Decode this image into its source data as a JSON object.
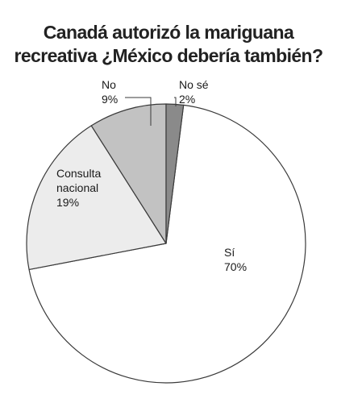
{
  "chart_data": {
    "type": "pie",
    "title": {
      "line1": "Canadá autorizó la mariguana",
      "line2": "recreativa ¿México debería también?"
    },
    "slices": [
      {
        "key": "si",
        "label_lines": [
          "Sí",
          "70%"
        ],
        "value": 70,
        "color": "#ffffff"
      },
      {
        "key": "consulta",
        "label_lines": [
          "Consulta",
          "nacional",
          "19%"
        ],
        "value": 19,
        "color": "#ececec"
      },
      {
        "key": "no",
        "label_lines": [
          "No",
          "9%"
        ],
        "value": 9,
        "color": "#c2c2c2"
      },
      {
        "key": "no-se",
        "label_lines": [
          "No sé",
          "2%"
        ],
        "value": 2,
        "color": "#8a8a8a"
      }
    ],
    "legend": "none"
  }
}
